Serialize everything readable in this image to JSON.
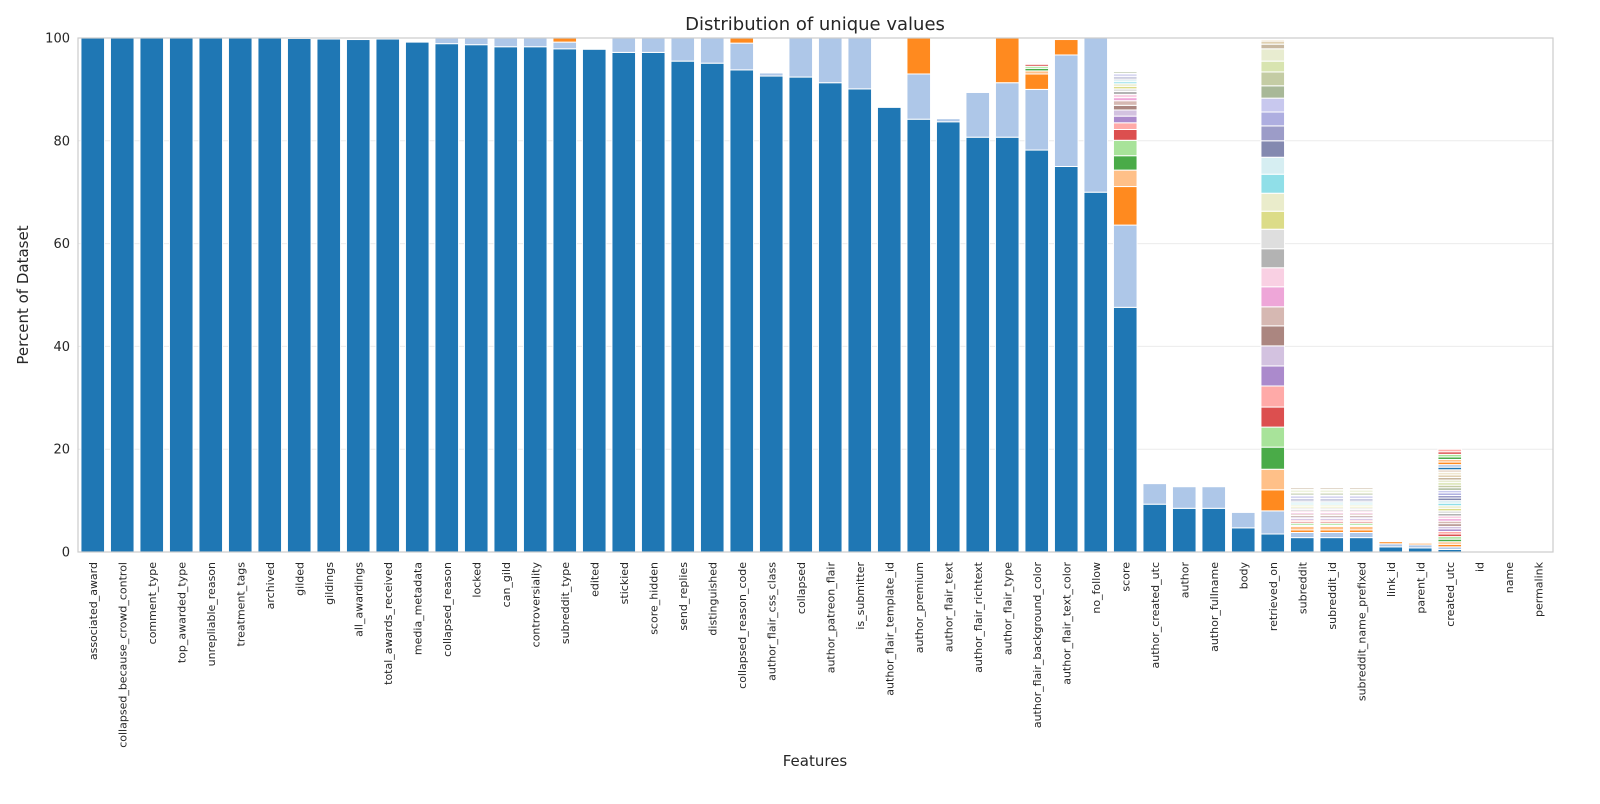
{
  "chart_data": {
    "type": "bar",
    "stacked": true,
    "title": "Distribution of unique values",
    "xlabel": "Features",
    "ylabel": "Percent of Dataset",
    "ylim": [
      0,
      100
    ],
    "yticks": [
      0,
      20,
      40,
      60,
      80,
      100
    ],
    "grid": true,
    "legend": "none",
    "palette": [
      "#1f77b4",
      "#aec7e8",
      "#ff8a1f",
      "#ffc088",
      "#4aab48",
      "#a8e39a",
      "#dc4f4f",
      "#ffaaa8",
      "#ab8acc",
      "#d3c2e0",
      "#ab8680",
      "#d6b8b2",
      "#eea6d8",
      "#f9d0e3",
      "#b3b3b3",
      "#dedede",
      "#dcdc88",
      "#eaeccb",
      "#90dfe8",
      "#d6eef2",
      "#8489b0",
      "#9c9cc8",
      "#aeaee0",
      "#c8c8ee",
      "#a8b898",
      "#c4cca4",
      "#d8e4b0",
      "#e8ecd0",
      "#c8b8a0",
      "#e0d0b0",
      "#f0e8d0",
      "#e8d8c8"
    ],
    "categories": [
      "associated_award",
      "collapsed_because_crowd_control",
      "comment_type",
      "top_awarded_type",
      "unrepliable_reason",
      "treatment_tags",
      "archived",
      "gilded",
      "gildings",
      "all_awardings",
      "total_awards_received",
      "media_metadata",
      "collapsed_reason",
      "locked",
      "can_gild",
      "controversiality",
      "subreddit_type",
      "edited",
      "stickied",
      "score_hidden",
      "send_replies",
      "distinguished",
      "collapsed_reason_code",
      "author_flair_css_class",
      "collapsed",
      "author_patreon_flair",
      "is_submitter",
      "author_flair_template_id",
      "author_premium",
      "author_flair_text",
      "author_flair_richtext",
      "author_flair_type",
      "author_flair_background_color",
      "author_flair_text_color",
      "no_follow",
      "score",
      "author_created_utc",
      "author",
      "author_fullname",
      "body",
      "retrieved_on",
      "subreddit",
      "subreddit_id",
      "subreddit_name_prefixed",
      "link_id",
      "parent_id",
      "created_utc",
      "id",
      "name",
      "permalink"
    ],
    "segments": [
      [
        100
      ],
      [
        100
      ],
      [
        100
      ],
      [
        100
      ],
      [
        100
      ],
      [
        100
      ],
      [
        100
      ],
      [
        99.9
      ],
      [
        99.8
      ],
      [
        99.7
      ],
      [
        99.8
      ],
      [
        99.2
      ],
      [
        98.9,
        1.1
      ],
      [
        98.7,
        1.3
      ],
      [
        98.3,
        1.7
      ],
      [
        98.3,
        1.7
      ],
      [
        97.9,
        1.3,
        0.8
      ],
      [
        97.8
      ],
      [
        97.2,
        2.8
      ],
      [
        97.2,
        2.8
      ],
      [
        95.5,
        4.5
      ],
      [
        95.1,
        4.9
      ],
      [
        93.8,
        5.2,
        1.0
      ],
      [
        92.6,
        0.6
      ],
      [
        92.4,
        7.6
      ],
      [
        91.3,
        8.7
      ],
      [
        90.1,
        9.9
      ],
      [
        86.5
      ],
      [
        84.2,
        8.8,
        7.0
      ],
      [
        83.7,
        0.6
      ],
      [
        80.7,
        8.7
      ],
      [
        80.7,
        10.6,
        8.7
      ],
      [
        78.2,
        11.8,
        3.0,
        0.6,
        0.5,
        0.4,
        0.4,
        0.2,
        0.2
      ],
      [
        75.0,
        21.7,
        3.0
      ],
      [
        70.0,
        30.0
      ],
      [
        47.6,
        16.0,
        7.5,
        3.2,
        2.8,
        3.0,
        2.1,
        1.3,
        1.3,
        1.2,
        0.9,
        0.9,
        0.6,
        0.6,
        0.6,
        0.5,
        0.5,
        0.5,
        0.4,
        0.4,
        0.3,
        0.3,
        0.3,
        0.3,
        0.3
      ],
      [
        9.3,
        4.0
      ],
      [
        8.5,
        4.2
      ],
      [
        8.5,
        4.2
      ],
      [
        4.7,
        3.0
      ],
      [
        3.5,
        4.5,
        4.1,
        4.0,
        4.3,
        3.9,
        3.9,
        4.1,
        3.9,
        3.9,
        3.9,
        3.7,
        3.9,
        3.7,
        3.7,
        3.8,
        3.5,
        3.5,
        3.7,
        3.3,
        3.2,
        2.9,
        2.7,
        2.7,
        2.4,
        2.7,
        2.1,
        2.4,
        0.9,
        0.6,
        0.3,
        0.2
      ],
      [
        2.8,
        1.0,
        0.5,
        0.7,
        0.2,
        0.4,
        0.3,
        0.3,
        0.3,
        0.3,
        0.3,
        0.3,
        0.3,
        0.3,
        0.3,
        0.3,
        0.3,
        0.3,
        0.3,
        0.3,
        0.3,
        0.3,
        0.3,
        0.3,
        0.3,
        0.3,
        0.3,
        0.3,
        0.3
      ],
      [
        2.8,
        1.0,
        0.5,
        0.7,
        0.2,
        0.4,
        0.3,
        0.3,
        0.3,
        0.3,
        0.3,
        0.3,
        0.3,
        0.3,
        0.3,
        0.3,
        0.3,
        0.3,
        0.3,
        0.3,
        0.3,
        0.3,
        0.3,
        0.3,
        0.3,
        0.3,
        0.3,
        0.3,
        0.3
      ],
      [
        2.8,
        1.0,
        0.5,
        0.7,
        0.2,
        0.4,
        0.3,
        0.3,
        0.3,
        0.3,
        0.3,
        0.3,
        0.3,
        0.3,
        0.3,
        0.3,
        0.3,
        0.3,
        0.3,
        0.3,
        0.3,
        0.3,
        0.3,
        0.3,
        0.3,
        0.3,
        0.3,
        0.3,
        0.3
      ],
      [
        1.0,
        0.6,
        0.4
      ],
      [
        0.8,
        0.6,
        0.3
      ],
      [
        0.5,
        0.5,
        0.5,
        0.5,
        0.5,
        0.5,
        0.5,
        0.5,
        0.5,
        0.5,
        0.5,
        0.5,
        0.5,
        0.5,
        0.5,
        0.5,
        0.5,
        0.5,
        0.5,
        0.5,
        0.5,
        0.5,
        0.5,
        0.5,
        0.5,
        0.5,
        0.5,
        0.5,
        0.5,
        0.5,
        0.5,
        0.5,
        0.5,
        0.5,
        0.5,
        0.5,
        0.5,
        0.5,
        0.5,
        0.5
      ],
      [
        0.1
      ],
      [
        0.1
      ],
      [
        0.1
      ]
    ]
  }
}
